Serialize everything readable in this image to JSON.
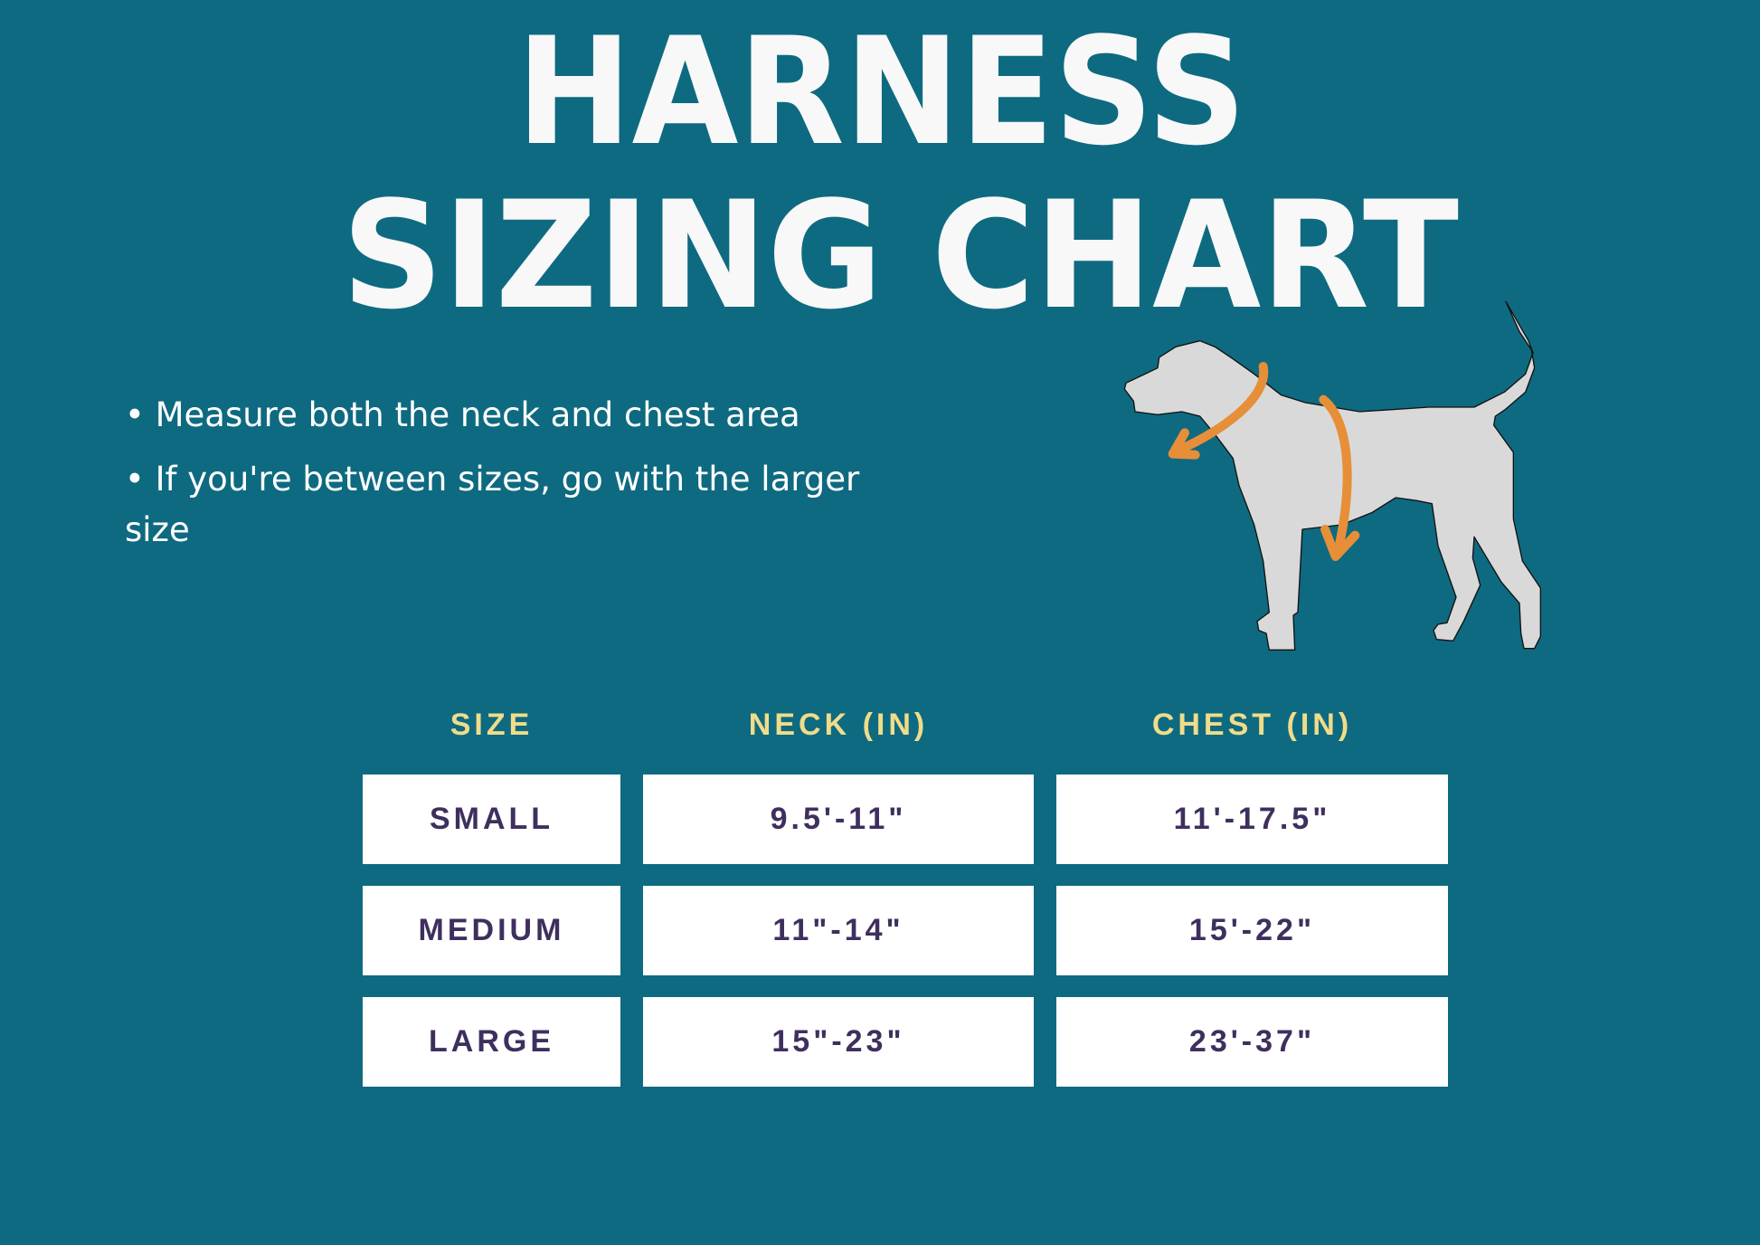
{
  "title": {
    "line1": "HARNESS",
    "line2": "SIZING CHART"
  },
  "instructions": [
    "• Measure both the neck and chest area",
    "• If you're between sizes, go with the larger size"
  ],
  "illustration": {
    "subject": "dog-silhouette",
    "arrows": [
      "neck-measure-arrow",
      "chest-measure-arrow"
    ]
  },
  "colors": {
    "background": "#0e6a80",
    "header": "#f0dc8a",
    "cell_text": "#3f2f5e",
    "arrow": "#e68f38",
    "dog": "#d9d9d9"
  },
  "table": {
    "headers": [
      "SIZE",
      "NECK (IN)",
      "CHEST (IN)"
    ],
    "rows": [
      [
        "SMALL",
        "9.5'-11\"",
        "11'-17.5\""
      ],
      [
        "MEDIUM",
        "11\"-14\"",
        "15'-22\""
      ],
      [
        "LARGE",
        "15\"-23\"",
        "23'-37\""
      ]
    ]
  }
}
